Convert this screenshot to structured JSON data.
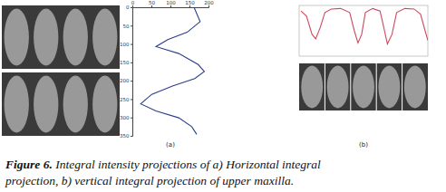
{
  "chart_data": [
    {
      "type": "line",
      "orientation": "horizontal",
      "x": [
        0,
        39,
        68,
        88,
        107,
        126,
        156,
        175,
        194,
        214,
        237,
        263,
        282,
        301,
        325,
        346
      ],
      "values": [
        162,
        178,
        144,
        93,
        62,
        122,
        173,
        189,
        164,
        107,
        51,
        22,
        62,
        122,
        156,
        169
      ],
      "color": "#2b3f8c",
      "xlim": [
        0,
        350
      ],
      "xticks": [
        0,
        50,
        100,
        150,
        200,
        250,
        300,
        350
      ],
      "ylim": [
        0,
        200
      ],
      "yticks": [
        0,
        50,
        100,
        150,
        200
      ]
    },
    {
      "type": "line",
      "x": [
        2,
        8,
        14,
        18,
        23,
        28,
        35,
        45,
        55,
        60,
        64,
        68,
        72,
        80,
        88,
        92,
        96,
        101,
        106,
        115,
        125,
        132,
        137,
        140
      ],
      "values": [
        89,
        79,
        43,
        34,
        57,
        86,
        93,
        94,
        86,
        50,
        26,
        43,
        86,
        94,
        89,
        57,
        24,
        43,
        86,
        94,
        93,
        83,
        50,
        31
      ],
      "color": "#cc4a5a",
      "xlim": [
        0,
        140
      ],
      "ylim": [
        0,
        100
      ],
      "tick_labels": false
    }
  ],
  "panel_labels": [
    "(a)",
    "(b)"
  ],
  "caption": {
    "label": "Figure 6.",
    "lines": [
      " Integral intensity projections of a) Horizontal integral",
      "projection, b) vertical integral projection of upper maxilla."
    ]
  }
}
